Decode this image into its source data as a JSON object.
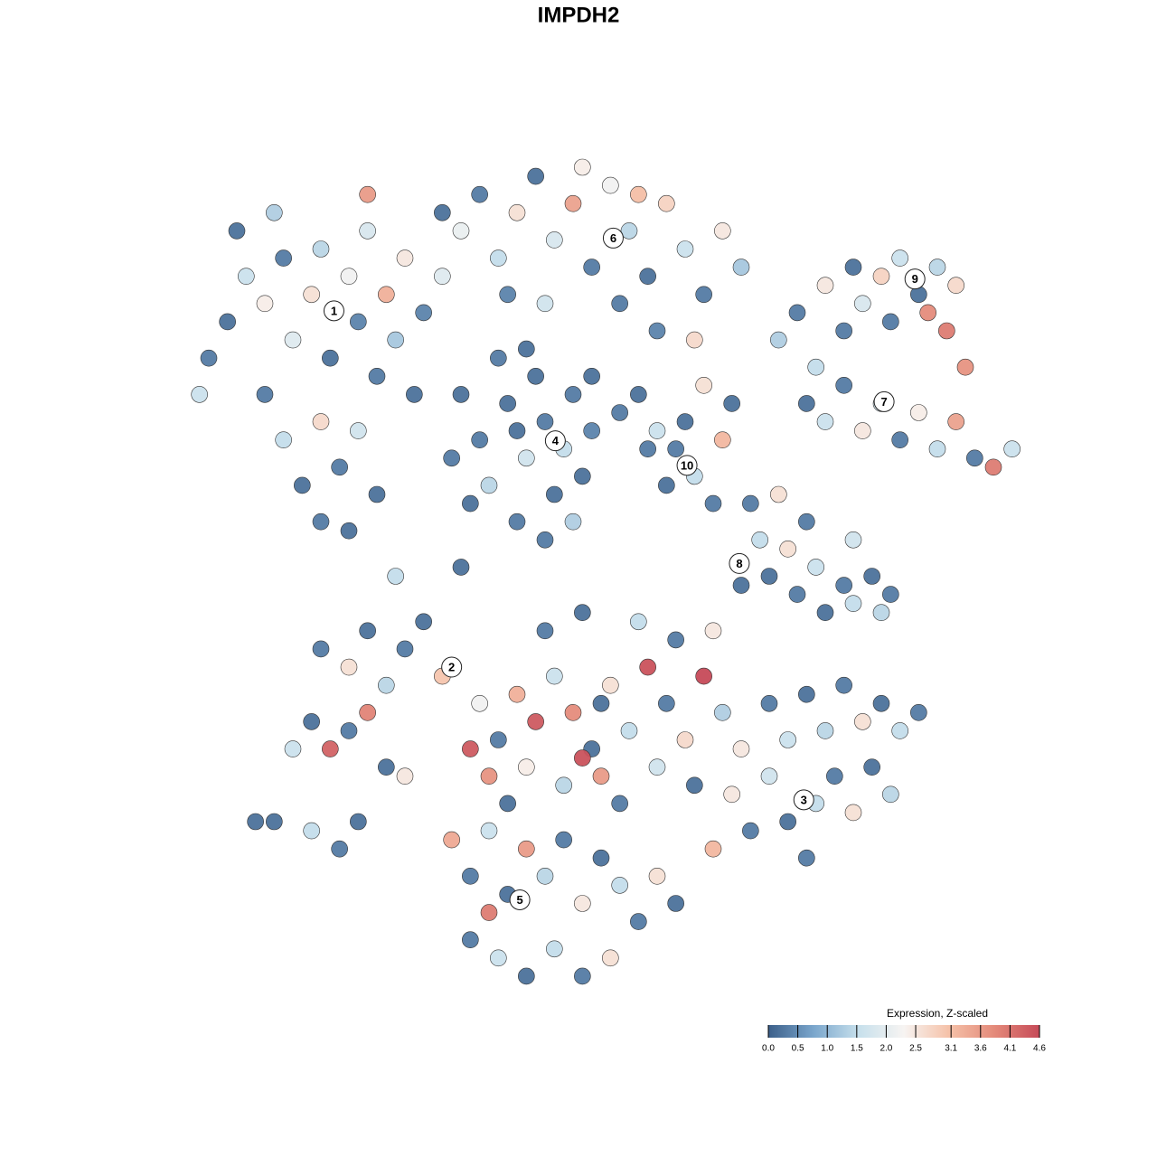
{
  "chart_data": {
    "type": "scatter",
    "title": "IMPDH2",
    "xlim": [
      -45,
      45
    ],
    "ylim": [
      -45,
      45
    ],
    "x": [
      -40,
      -38,
      -36,
      -34,
      -33,
      -31,
      -30,
      -29,
      -27,
      -26,
      -25,
      -24,
      -23,
      -22,
      -21,
      -20,
      -36,
      -34,
      -32,
      -30,
      -28,
      -26,
      -24,
      -30,
      -27,
      -42,
      -43,
      -39,
      -19,
      -17,
      -25,
      -35,
      -15,
      -13,
      -11,
      -9,
      -7,
      -5,
      -3,
      -1,
      1,
      3,
      5,
      7,
      9,
      11,
      13,
      15,
      -10,
      -6,
      2,
      -17,
      6,
      10,
      -2,
      4,
      -8,
      -15,
      -13,
      -12,
      -10,
      -9,
      -8,
      -7,
      -6,
      -5,
      -4,
      -3,
      -2,
      -1,
      -11,
      -14,
      -6,
      -3,
      -9,
      -16,
      -1,
      2,
      4,
      6,
      8,
      10,
      9,
      11,
      12,
      7,
      13,
      5,
      14,
      19,
      21,
      23,
      24,
      26,
      27,
      28,
      30,
      31,
      32,
      34,
      35,
      36,
      37,
      38,
      39,
      22,
      24,
      26,
      28,
      30,
      32,
      34,
      36,
      38,
      40,
      42,
      44,
      16,
      17,
      18,
      20,
      21,
      23,
      24,
      26,
      27,
      29,
      30,
      31,
      19,
      15,
      22,
      27,
      -30,
      -27,
      -25,
      -23,
      -21,
      -19,
      -17,
      -31,
      -29,
      -27,
      -25,
      -23,
      -33,
      -35,
      -31,
      -28,
      -26,
      -21,
      -13,
      -11,
      -9,
      -7,
      -5,
      -3,
      -1,
      1,
      3,
      5,
      7,
      9,
      11,
      13,
      15,
      -12,
      -10,
      -8,
      -4,
      0,
      2,
      6,
      10,
      -6,
      -2,
      4,
      8,
      12,
      -14,
      -2,
      0,
      18,
      20,
      22,
      24,
      26,
      28,
      30,
      32,
      34,
      14,
      16,
      18,
      20,
      23,
      25,
      27,
      29,
      31,
      12,
      22,
      -16,
      -14,
      -12,
      -10,
      -8,
      -6,
      -4,
      -2,
      0,
      2,
      4,
      6,
      8,
      -14,
      -11,
      -8,
      -5,
      -2,
      1,
      -12,
      -22,
      -15,
      -37
    ],
    "y": [
      28,
      33,
      30,
      35,
      26,
      31,
      36,
      24,
      33,
      28,
      38,
      22,
      31,
      26,
      35,
      20,
      20,
      15,
      10,
      17,
      12,
      16,
      9,
      6,
      5,
      24,
      20,
      38,
      29,
      33,
      42,
      40,
      38,
      42,
      35,
      40,
      44,
      37,
      41,
      34,
      43,
      38,
      33,
      41,
      36,
      31,
      38,
      34,
      31,
      30,
      30,
      40,
      27,
      26,
      45,
      42,
      25,
      20,
      15,
      10,
      19,
      6,
      13,
      22,
      17,
      9,
      14,
      20,
      11,
      16,
      24,
      8,
      4,
      6,
      16,
      13,
      22,
      18,
      20,
      16,
      14,
      11,
      17,
      21,
      8,
      10,
      15,
      14,
      19,
      26,
      29,
      23,
      32,
      27,
      34,
      30,
      33,
      28,
      35,
      31,
      29,
      34,
      27,
      32,
      23,
      19,
      17,
      21,
      16,
      19,
      15,
      18,
      14,
      17,
      13,
      12,
      14,
      8,
      4,
      0,
      3,
      -2,
      1,
      -4,
      -1,
      -3,
      0,
      -4,
      -2,
      9,
      -1,
      6,
      4,
      -8,
      -10,
      -6,
      -12,
      -8,
      -5,
      -11,
      -16,
      -19,
      -17,
      -15,
      -21,
      -19,
      -27,
      -28,
      -30,
      -27,
      -22,
      -14,
      -18,
      -13,
      -16,
      -11,
      -15,
      -19,
      -12,
      -17,
      -10,
      -14,
      -18,
      -11,
      -15,
      -19,
      -22,
      -25,
      -21,
      -23,
      -22,
      -25,
      -21,
      -23,
      -6,
      -4,
      -5,
      -7,
      -6,
      -19,
      -20,
      -14,
      -14,
      -18,
      -13,
      -17,
      -12,
      -16,
      -14,
      -17,
      -15,
      -24,
      -28,
      -22,
      -27,
      -25,
      -22,
      -26,
      -21,
      -24,
      -30,
      -31,
      -29,
      -33,
      -28,
      -35,
      -30,
      -33,
      -29,
      -36,
      -31,
      -34,
      -38,
      -33,
      -36,
      -40,
      -42,
      -44,
      -41,
      -44,
      -42,
      -37,
      0,
      1,
      -27
    ],
    "values": [
      0.2,
      1.6,
      2.4,
      0.3,
      1.9,
      2.6,
      1.4,
      0.2,
      2.2,
      0.4,
      1.8,
      0.3,
      3.3,
      1.2,
      2.5,
      0.2,
      0.3,
      1.5,
      0.2,
      2.7,
      0.3,
      1.7,
      0.2,
      0.3,
      0.2,
      0.3,
      1.6,
      0.2,
      0.4,
      1.9,
      3.6,
      1.3,
      2.1,
      0.3,
      1.5,
      2.6,
      0.2,
      1.8,
      3.5,
      0.3,
      2.2,
      1.4,
      0.2,
      2.8,
      1.6,
      0.3,
      2.5,
      1.2,
      0.4,
      1.7,
      0.3,
      0.2,
      0.4,
      2.7,
      2.4,
      3.1,
      0.2,
      0.2,
      0.3,
      1.4,
      0.2,
      0.3,
      1.7,
      0.2,
      0.3,
      0.2,
      1.5,
      0.3,
      0.2,
      0.4,
      0.3,
      0.2,
      0.3,
      1.3,
      0.2,
      0.3,
      0.2,
      0.3,
      0.2,
      1.6,
      0.3,
      1.5,
      0.2,
      2.6,
      0.3,
      0.2,
      3.2,
      0.3,
      0.2,
      1.3,
      0.3,
      1.5,
      2.5,
      0.3,
      0.2,
      1.8,
      2.8,
      0.3,
      1.6,
      0.2,
      3.8,
      1.4,
      4.0,
      2.7,
      3.7,
      0.2,
      1.6,
      0.3,
      2.5,
      1.7,
      0.3,
      2.4,
      1.5,
      3.5,
      0.3,
      4.0,
      1.6,
      0.3,
      1.5,
      0.2,
      2.6,
      0.3,
      1.6,
      0.2,
      0.3,
      1.5,
      0.2,
      1.4,
      0.3,
      2.6,
      0.2,
      0.3,
      1.7,
      0.3,
      2.6,
      0.2,
      1.4,
      0.3,
      0.2,
      3.0,
      0.2,
      4.3,
      0.3,
      3.9,
      0.2,
      1.6,
      0.2,
      1.5,
      0.3,
      0.2,
      2.5,
      2.2,
      0.3,
      3.3,
      4.4,
      1.6,
      3.8,
      0.2,
      2.6,
      1.5,
      4.5,
      0.3,
      2.7,
      4.6,
      1.3,
      2.5,
      3.7,
      0.2,
      2.4,
      1.4,
      3.6,
      0.3,
      1.7,
      0.2,
      0.3,
      0.2,
      1.5,
      0.3,
      2.5,
      4.4,
      4.5,
      0.2,
      0.3,
      1.6,
      0.2,
      1.4,
      0.3,
      2.6,
      0.2,
      1.5,
      0.3,
      2.5,
      0.3,
      1.7,
      0.2,
      1.5,
      0.3,
      2.6,
      0.2,
      1.4,
      3.2,
      0.3,
      3.4,
      0.3,
      1.6,
      0.2,
      3.6,
      1.4,
      0.3,
      2.5,
      0.2,
      1.5,
      0.3,
      2.6,
      0.2,
      0.3,
      1.6,
      0.2,
      1.5,
      0.3,
      2.6,
      4.0,
      1.5,
      0.2,
      0.2
    ],
    "clusters": [
      {
        "label": "1",
        "x": -28.6,
        "y": 29.2
      },
      {
        "label": "6",
        "x": 1.3,
        "y": 37.2
      },
      {
        "label": "9",
        "x": 33.6,
        "y": 32.7
      },
      {
        "label": "7",
        "x": 30.3,
        "y": 19.2
      },
      {
        "label": "4",
        "x": -4.9,
        "y": 14.9
      },
      {
        "label": "10",
        "x": 9.2,
        "y": 12.2
      },
      {
        "label": "8",
        "x": 14.8,
        "y": 1.4
      },
      {
        "label": "2",
        "x": -16,
        "y": -10
      },
      {
        "label": "3",
        "x": 21.7,
        "y": -24.6
      },
      {
        "label": "5",
        "x": -8.7,
        "y": -35.6
      }
    ],
    "colorbar": {
      "title": "Expression, Z-scaled",
      "lim": [
        0,
        4.6
      ],
      "colors": [
        "#3c5f8a",
        "#7aa6cc",
        "#c7e0ec",
        "#f7f4f2",
        "#f5c1a8",
        "#e48a7a",
        "#c64a58"
      ],
      "ticks": [
        {
          "value": 0,
          "label": "0.0"
        },
        0.5,
        {
          "value": 1,
          "label": "1.0"
        },
        1.5,
        {
          "value": 2,
          "label": "2.0"
        },
        2.5,
        3.1,
        3.6,
        4.1,
        4.6
      ]
    }
  }
}
